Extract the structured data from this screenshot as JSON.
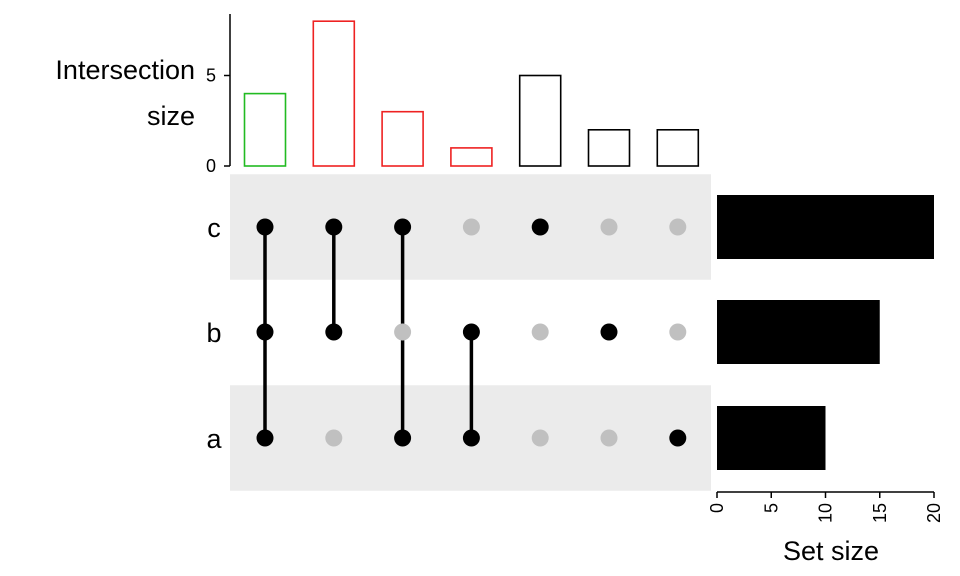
{
  "chart_data": {
    "type": "upset",
    "sets": [
      "c",
      "b",
      "a"
    ],
    "intersections": [
      {
        "members": [
          "a",
          "b",
          "c"
        ],
        "size": 4,
        "color": "#22bb22"
      },
      {
        "members": [
          "b",
          "c"
        ],
        "size": 8,
        "color": "#ee2222"
      },
      {
        "members": [
          "a",
          "c"
        ],
        "size": 3,
        "color": "#ee2222"
      },
      {
        "members": [
          "a",
          "b"
        ],
        "size": 1,
        "color": "#ee2222"
      },
      {
        "members": [
          "c"
        ],
        "size": 5,
        "color": "#000000"
      },
      {
        "members": [
          "b"
        ],
        "size": 2,
        "color": "#000000"
      },
      {
        "members": [
          "a"
        ],
        "size": 2,
        "color": "#000000"
      }
    ],
    "intersection_size": {
      "ylabel_lines": [
        "Intersection",
        "size"
      ],
      "ylim": [
        0,
        8
      ],
      "ticks": [
        "0",
        "5"
      ]
    },
    "set_size": {
      "values": {
        "c": 20,
        "b": 15,
        "a": 10
      },
      "xlabel": "Set size",
      "xlim": [
        0,
        20
      ],
      "ticks": [
        "0",
        "5",
        "10",
        "15",
        "20"
      ]
    },
    "colors": {
      "active_dot": "#000000",
      "inactive_dot": "#c0c0c0",
      "stripe": "#ebebeb"
    }
  }
}
